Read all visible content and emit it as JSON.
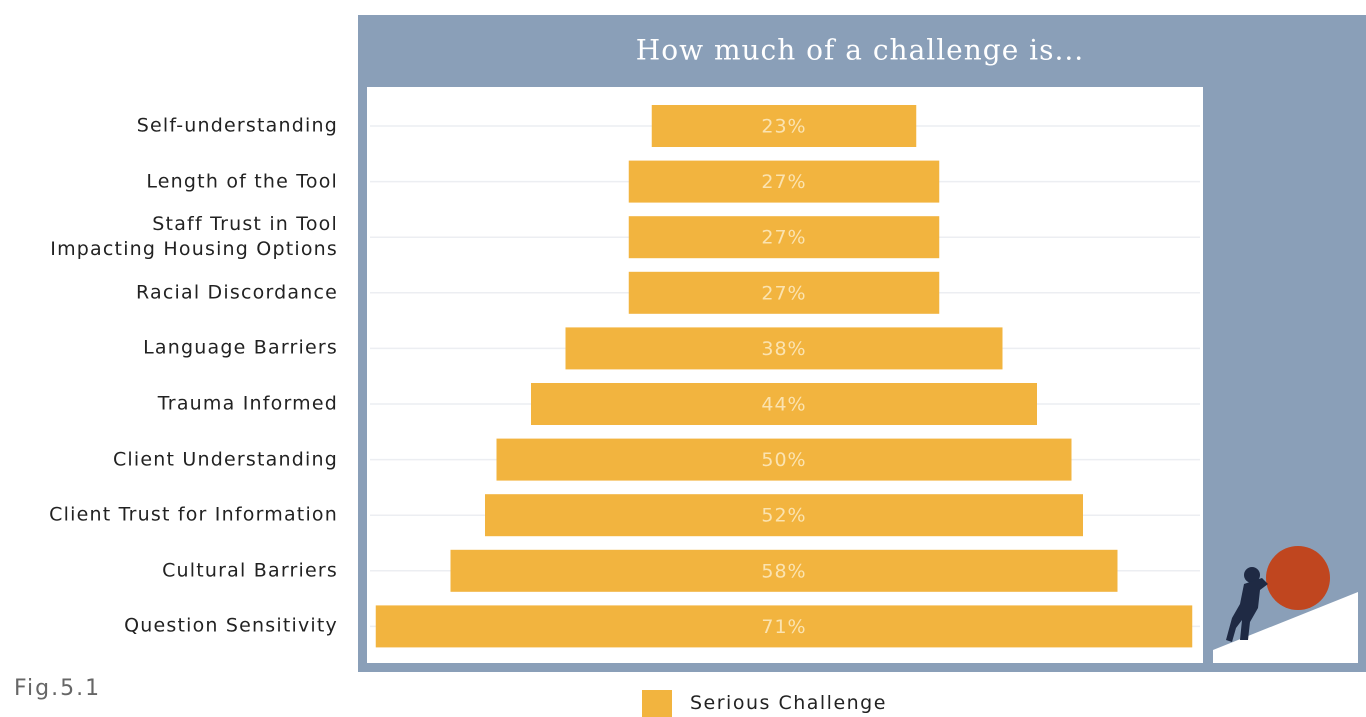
{
  "chart_data": {
    "type": "bar",
    "title": "How much of a challenge is...",
    "categories": [
      "Self-understanding",
      "Length of the Tool",
      "Staff Trust in Tool\nImpacting Housing Options",
      "Racial Discordance",
      "Language Barriers",
      "Trauma Informed",
      "Client Understanding",
      "Client Trust for Information",
      "Cultural Barriers",
      "Question Sensitivity"
    ],
    "series": [
      {
        "name": "Serious Challenge",
        "color": "#f2b43f",
        "values": [
          23,
          27,
          27,
          27,
          38,
          44,
          50,
          52,
          58,
          71
        ],
        "value_labels": [
          "23%",
          "27%",
          "27%",
          "27%",
          "38%",
          "44%",
          "50%",
          "52%",
          "58%",
          "71%"
        ]
      }
    ]
  },
  "caption": "Fig.5.1"
}
